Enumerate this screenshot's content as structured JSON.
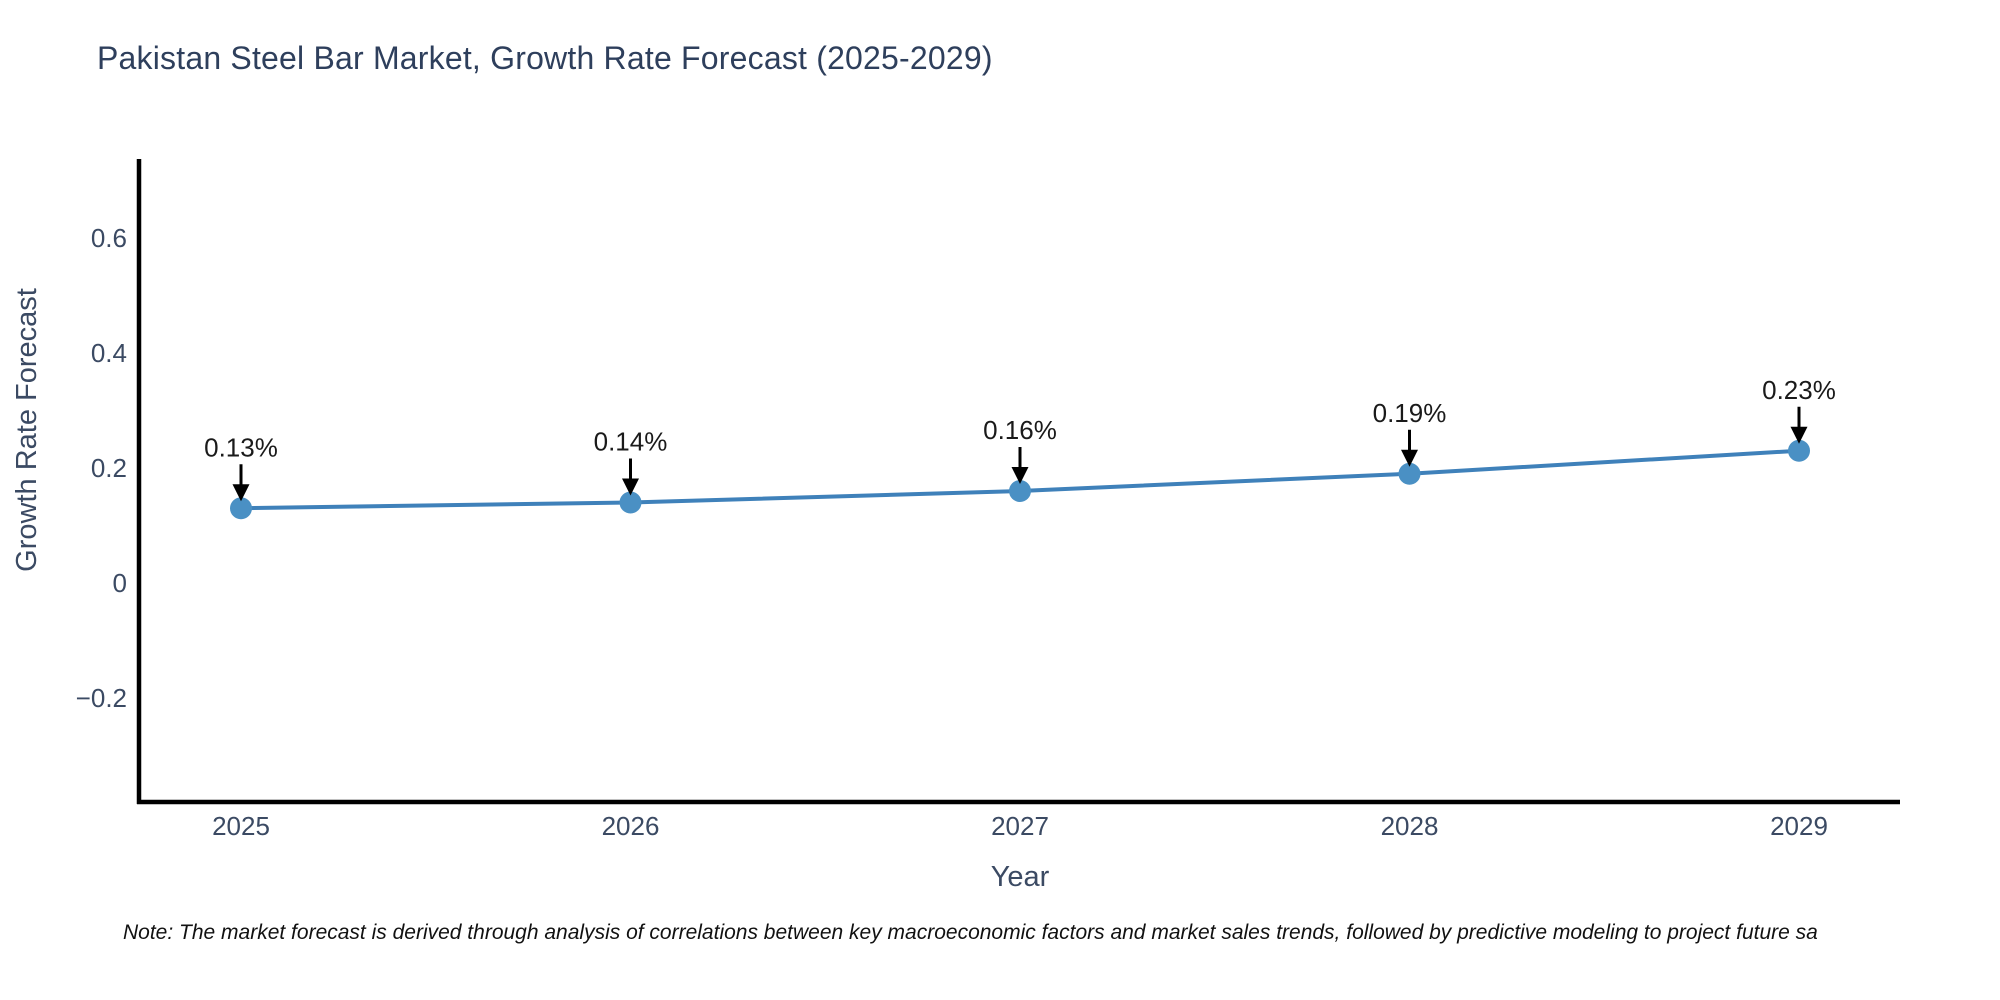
{
  "page": {
    "background": "#ffffff"
  },
  "chart_data": {
    "type": "line",
    "title": "Pakistan Steel Bar Market, Growth Rate Forecast (2025-2029)",
    "xlabel": "Year",
    "ylabel": "Growth Rate Forecast",
    "categories": [
      "2025",
      "2026",
      "2027",
      "2028",
      "2029"
    ],
    "series": [
      {
        "name": "Growth Rate Forecast",
        "values": [
          0.13,
          0.14,
          0.16,
          0.19,
          0.23
        ],
        "point_labels": [
          "0.13%",
          "0.14%",
          "0.16%",
          "0.19%",
          "0.23%"
        ]
      }
    ],
    "yticks": {
      "labels": [
        "0.6",
        "0.4",
        "0.2",
        "0",
        "−0.2"
      ],
      "values": [
        0.6,
        0.4,
        0.2,
        0,
        -0.2
      ]
    },
    "ylim": [
      -0.38,
      0.74
    ],
    "grid": false,
    "legend": "none",
    "annotation_style": "value-label-with-down-arrow-to-point",
    "marker": "circle",
    "colors": {
      "line": "#3f81ba",
      "marker": "#4a90c4",
      "annotation_text": "#1a1a1a",
      "arrow": "#000000",
      "axis": "#000000",
      "tick_label": "#3b4a63",
      "axis_label": "#3b4a63",
      "title": "#2e3f5c"
    }
  },
  "note": {
    "text": "Note: The market forecast is derived through analysis of correlations between key macroeconomic factors and market sales trends, followed by predictive modeling to project future sa"
  }
}
